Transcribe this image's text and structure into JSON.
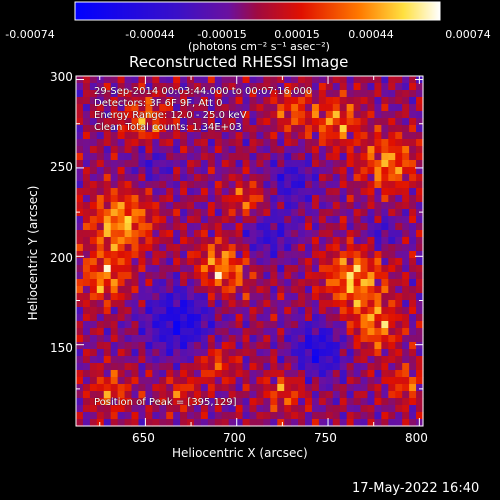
{
  "colorbar": {
    "ticks": [
      "-0.00074",
      "-0.00044",
      "-0.00015",
      "0.00015",
      "0.00044",
      "0.00074"
    ],
    "units_label": "(photons cm⁻² s⁻¹ asec⁻²)"
  },
  "chart_data": {
    "type": "heatmap",
    "title": "Reconstructed RHESSI Image",
    "xlabel": "Heliocentric X (arcsec)",
    "ylabel": "Heliocentric Y (arcsec)",
    "xlim": [
      612,
      802
    ],
    "ylim": [
      104,
      302
    ],
    "xticks": [
      "650",
      "700",
      "750",
      "800"
    ],
    "yticks": [
      "150",
      "200",
      "250",
      "300"
    ],
    "colorbar_range": [
      -0.00074,
      0.00074
    ],
    "peak": [
      395,
      129
    ],
    "annotations": [
      "29-Sep-2014 00:03:44.000 to 00:07:16.000",
      "Detectors: 3F 6F 9F, Att 0",
      "Energy Range: 12.0 - 25.0 keV",
      "Clean    Total counts: 1.34E+03"
    ],
    "peak_label": "Position of Peak = [395,129]"
  },
  "footer": {
    "timestamp": "17-May-2022 16:40"
  }
}
